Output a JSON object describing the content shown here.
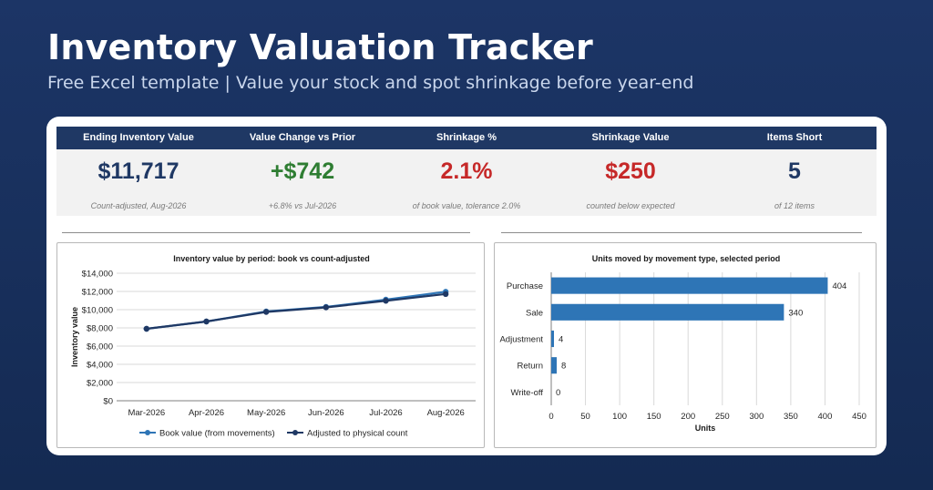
{
  "header": {
    "title": "Inventory Valuation Tracker",
    "subtitle": "Free Excel template  |  Value your stock and spot shrinkage before year-end"
  },
  "kpis": [
    {
      "label": "Ending Inventory Value",
      "value": "$11,717",
      "note": "Count-adjusted, Aug-2026",
      "color": "#1f3864"
    },
    {
      "label": "Value Change vs Prior",
      "value": "+$742",
      "note": "+6.8% vs Jul-2026",
      "color": "#2e7d32"
    },
    {
      "label": "Shrinkage %",
      "value": "2.1%",
      "note": "of book value, tolerance 2.0%",
      "color": "#c62828"
    },
    {
      "label": "Shrinkage Value",
      "value": "$250",
      "note": "counted below expected",
      "color": "#c62828"
    },
    {
      "label": "Items Short",
      "value": "5",
      "note": "of 12 items",
      "color": "#1f3864"
    }
  ],
  "colors": {
    "accent_dark": "#1f3864",
    "book_line": "#2e75b6",
    "adjusted_line": "#1f3864",
    "bar": "#2e75b6"
  },
  "chart_data": [
    {
      "type": "line",
      "title": "Inventory value by period: book vs count-adjusted",
      "ylabel": "Inventory value",
      "xlabel": "",
      "categories": [
        "Mar-2026",
        "Apr-2026",
        "May-2026",
        "Jun-2026",
        "Jul-2026",
        "Aug-2026"
      ],
      "ylim": [
        0,
        14000
      ],
      "yticks": [
        "$0",
        "$2,000",
        "$4,000",
        "$6,000",
        "$8,000",
        "$10,000",
        "$12,000",
        "$14,000"
      ],
      "series": [
        {
          "name": "Book value (from movements)",
          "values": [
            7900,
            8700,
            9800,
            10300,
            11100,
            11967
          ]
        },
        {
          "name": "Adjusted to physical count",
          "values": [
            7900,
            8700,
            9750,
            10250,
            10975,
            11717
          ]
        }
      ],
      "grid": true,
      "legend": "bottom"
    },
    {
      "type": "bar",
      "orientation": "horizontal",
      "title": "Units moved by movement type, selected period",
      "xlabel": "Units",
      "categories": [
        "Purchase",
        "Sale",
        "Adjustment",
        "Return",
        "Write-off"
      ],
      "values": [
        404,
        340,
        4,
        8,
        0
      ],
      "xlim": [
        0,
        450
      ],
      "xticks": [
        "0",
        "50",
        "100",
        "150",
        "200",
        "250",
        "300",
        "350",
        "400",
        "450"
      ],
      "grid": true
    }
  ]
}
